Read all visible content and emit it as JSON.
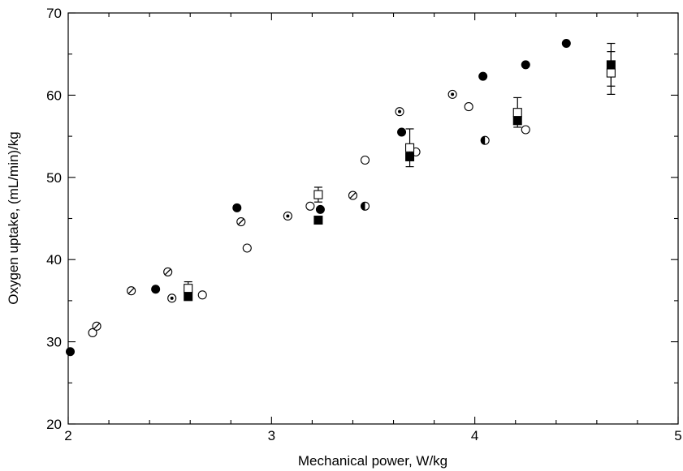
{
  "chart_data": {
    "type": "scatter",
    "title": "",
    "xlabel": "Mechanical power, W/kg",
    "ylabel": "Oxygen uptake, (mL/min)/kg",
    "xlim": [
      2,
      5
    ],
    "ylim": [
      20,
      70
    ],
    "x_major_ticks": [
      2,
      3,
      4,
      5
    ],
    "x_tick_labels": [
      "2",
      "3",
      "4",
      "5"
    ],
    "x_minor_step": 0.2,
    "y_major_ticks": [
      20,
      30,
      40,
      50,
      60,
      70
    ],
    "y_tick_labels": [
      "20",
      "30",
      "40",
      "50",
      "60",
      "70"
    ],
    "y_minor_step": 5,
    "grid": false,
    "legend": "none",
    "series": [
      {
        "marker": "circle-filled",
        "points": [
          {
            "x": 2.01,
            "y": 28.8
          },
          {
            "x": 2.43,
            "y": 36.4
          },
          {
            "x": 2.83,
            "y": 46.3
          },
          {
            "x": 3.24,
            "y": 46.1
          },
          {
            "x": 3.64,
            "y": 55.5
          },
          {
            "x": 4.04,
            "y": 62.3
          },
          {
            "x": 4.25,
            "y": 63.7
          },
          {
            "x": 4.45,
            "y": 66.3
          }
        ]
      },
      {
        "marker": "circle-open",
        "points": [
          {
            "x": 2.12,
            "y": 31.1
          },
          {
            "x": 2.66,
            "y": 35.7
          },
          {
            "x": 2.88,
            "y": 41.4
          },
          {
            "x": 3.19,
            "y": 46.5
          },
          {
            "x": 3.46,
            "y": 52.1
          },
          {
            "x": 3.71,
            "y": 53.1
          },
          {
            "x": 3.97,
            "y": 58.6
          },
          {
            "x": 4.25,
            "y": 55.8
          }
        ]
      },
      {
        "marker": "circle-slashed",
        "points": [
          {
            "x": 2.14,
            "y": 31.9
          },
          {
            "x": 2.31,
            "y": 36.2
          },
          {
            "x": 2.49,
            "y": 38.5
          },
          {
            "x": 2.85,
            "y": 44.6
          },
          {
            "x": 3.4,
            "y": 47.8
          }
        ]
      },
      {
        "marker": "circle-dotted",
        "points": [
          {
            "x": 2.51,
            "y": 35.3
          },
          {
            "x": 3.08,
            "y": 45.3
          },
          {
            "x": 3.63,
            "y": 58.0
          },
          {
            "x": 3.89,
            "y": 60.1
          }
        ]
      },
      {
        "marker": "circle-half-filled",
        "points": [
          {
            "x": 3.46,
            "y": 46.5
          },
          {
            "x": 4.05,
            "y": 54.5
          }
        ]
      },
      {
        "marker": "square-open",
        "points": [
          {
            "x": 2.59,
            "y": 36.5,
            "err": 0.8
          },
          {
            "x": 3.23,
            "y": 47.9,
            "err": 0.9
          },
          {
            "x": 3.68,
            "y": 53.6,
            "err": 2.3
          },
          {
            "x": 4.21,
            "y": 57.9,
            "err": 1.8
          },
          {
            "x": 4.67,
            "y": 62.7,
            "err": 2.6
          }
        ]
      },
      {
        "marker": "square-filled",
        "points": [
          {
            "x": 2.59,
            "y": 35.5
          },
          {
            "x": 3.23,
            "y": 44.8
          },
          {
            "x": 3.68,
            "y": 52.5
          },
          {
            "x": 4.21,
            "y": 56.9
          },
          {
            "x": 4.67,
            "y": 63.7,
            "err": 2.6
          }
        ]
      }
    ]
  }
}
